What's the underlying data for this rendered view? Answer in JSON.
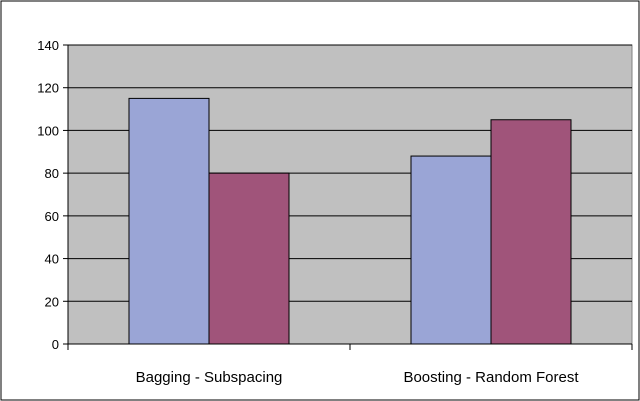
{
  "chart_data": {
    "type": "bar",
    "title": "",
    "xlabel": "",
    "ylabel": "",
    "categories": [
      "Bagging - Subspacing",
      "Boosting - Random Forest"
    ],
    "series": [
      {
        "values": [
          115,
          88
        ],
        "color": "#9aa5d6"
      },
      {
        "values": [
          80,
          105
        ],
        "color": "#a0547a"
      }
    ],
    "ylim": [
      0,
      140
    ],
    "yticks": [
      0,
      20,
      40,
      60,
      80,
      100,
      120,
      140
    ],
    "grid": true,
    "legend": "none",
    "plot_background": "#c0c0c0"
  }
}
